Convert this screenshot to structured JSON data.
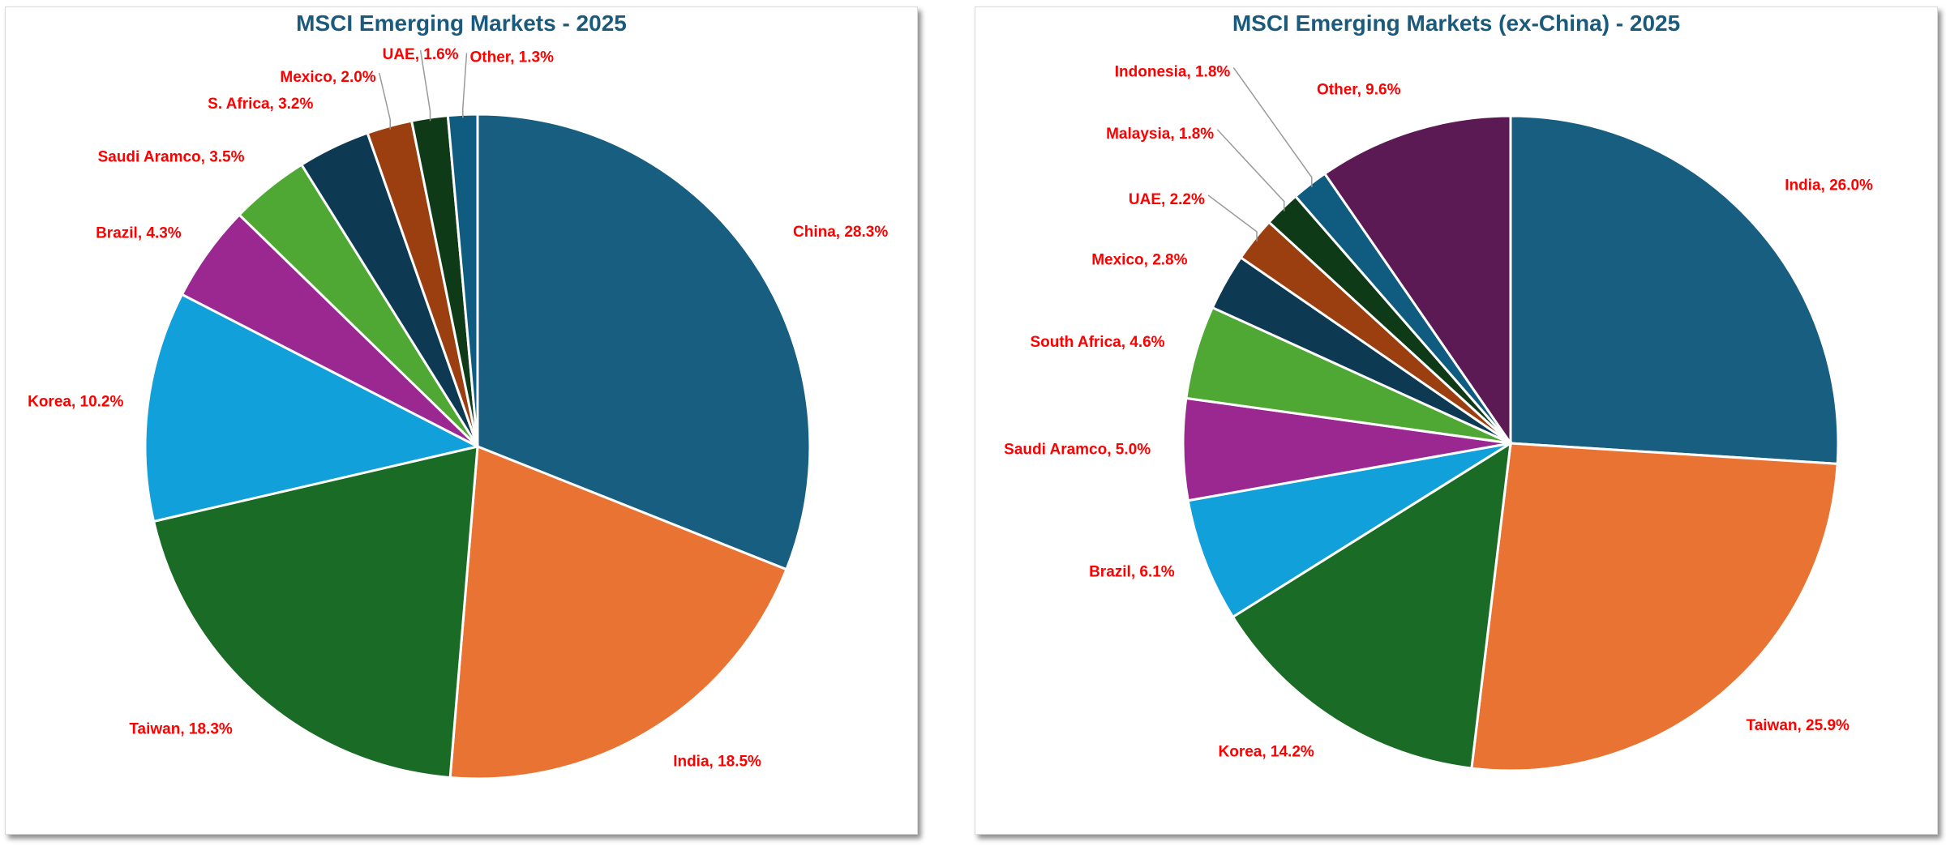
{
  "chart_data": [
    {
      "type": "pie",
      "title": "MSCI Emerging Markets - 2025",
      "categories": [
        "China",
        "India",
        "Taiwan",
        "Korea",
        "Brazil",
        "Saudi Aramco",
        "S. Africa",
        "Mexico",
        "UAE",
        "Other"
      ],
      "values": [
        28.3,
        18.5,
        18.3,
        10.2,
        4.3,
        3.5,
        3.2,
        2.0,
        1.6,
        1.3
      ],
      "labels": [
        "China, 28.3%",
        "India, 18.5%",
        "Taiwan, 18.3%",
        "Korea, 10.2%",
        "Brazil, 4.3%",
        "Saudi Aramco, 3.5%",
        "S. Africa, 3.2%",
        "Mexico, 2.0%",
        "UAE, 1.6%",
        "Other, 1.3%"
      ],
      "colors": [
        "#175e80",
        "#e97332",
        "#1a6b26",
        "#11a0d9",
        "#9a2890",
        "#4ea833",
        "#0d3a52",
        "#9c3f10",
        "#0e3a18",
        "#0f5c80"
      ],
      "legend": "none"
    },
    {
      "type": "pie",
      "title": "MSCI Emerging Markets (ex-China) - 2025",
      "categories": [
        "India",
        "Taiwan",
        "Korea",
        "Brazil",
        "Saudi Aramco",
        "South Africa",
        "Mexico",
        "UAE",
        "Malaysia",
        "Indonesia",
        "Other"
      ],
      "values": [
        26.0,
        25.9,
        14.2,
        6.1,
        5.0,
        4.6,
        2.8,
        2.2,
        1.8,
        1.8,
        9.6
      ],
      "labels": [
        "India, 26.0%",
        "Taiwan, 25.9%",
        "Korea, 14.2%",
        "Brazil, 6.1%",
        "Saudi Aramco, 5.0%",
        "South Africa, 4.6%",
        "Mexico, 2.8%",
        "UAE, 2.2%",
        "Malaysia, 1.8%",
        "Indonesia, 1.8%",
        "Other, 9.6%"
      ],
      "colors": [
        "#175e80",
        "#e97332",
        "#1a6b26",
        "#11a0d9",
        "#9a2890",
        "#4ea833",
        "#0d3a52",
        "#9c3f10",
        "#0e3a18",
        "#0f5c80",
        "#5c1a55"
      ],
      "legend": "none"
    }
  ]
}
